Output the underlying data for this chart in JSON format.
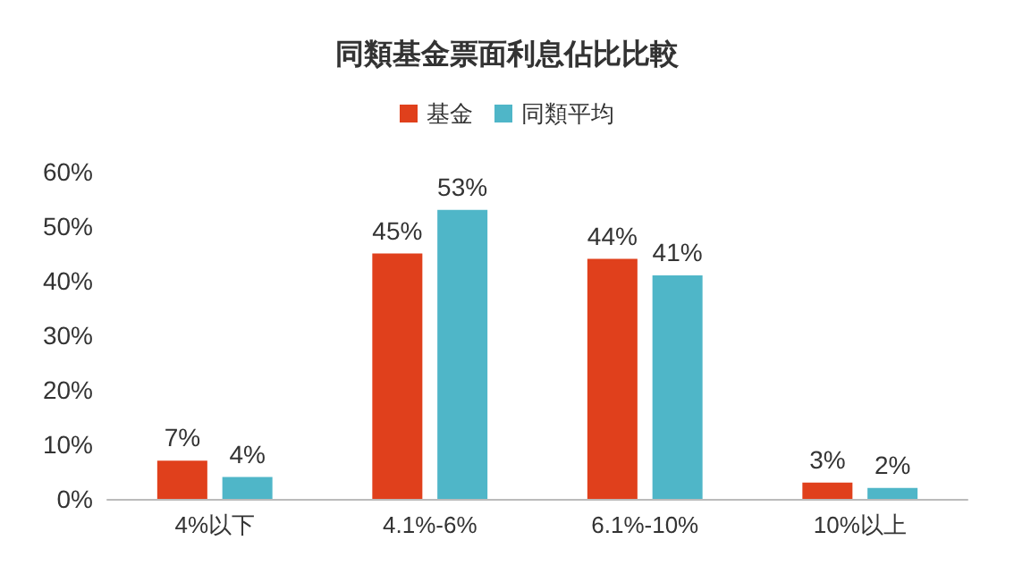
{
  "chart_data": {
    "type": "bar",
    "title": "同類基金票面利息佔比比較",
    "categories": [
      "4%以下",
      "4.1%-6%",
      "6.1%-10%",
      "10%以上"
    ],
    "series": [
      {
        "name": "基金",
        "color": "#e0401c",
        "values": [
          7,
          45,
          44,
          3
        ],
        "value_labels": [
          "7%",
          "45%",
          "44%",
          "3%"
        ]
      },
      {
        "name": "同類平均",
        "color": "#4fb6c8",
        "values": [
          4,
          53,
          41,
          2
        ],
        "value_labels": [
          "4%",
          "53%",
          "41%",
          "2%"
        ]
      }
    ],
    "ylim": [
      0,
      60
    ],
    "yticks": [
      {
        "value": 0,
        "label": "0%"
      },
      {
        "value": 10,
        "label": "10%"
      },
      {
        "value": 20,
        "label": "20%"
      },
      {
        "value": 30,
        "label": "30%"
      },
      {
        "value": 40,
        "label": "40%"
      },
      {
        "value": 50,
        "label": "50%"
      },
      {
        "value": 60,
        "label": "60%"
      }
    ],
    "grid": false,
    "legend": "top"
  }
}
